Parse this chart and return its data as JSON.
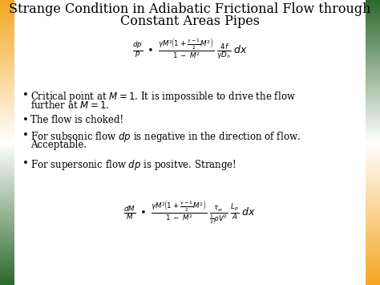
{
  "title_line1": "Strange Condition in Adiabatic Frictional Flow through",
  "title_line2": "Constant Areas Pipes",
  "title_fontsize": 11.5,
  "bg_color": "#ffffff",
  "text_color": "#000000",
  "bullet_fontsize": 8.5,
  "eq_fontsize": 9.0,
  "bullet1_line1": "Critical point at $M=1$. It is impossible to drive the flow",
  "bullet1_line2": "further at $M=1$.",
  "bullet2": "The flow is choked!",
  "bullet3_line1": "For subsonic flow $dp$ is negative in the direction of flow.",
  "bullet3_line2": "Acceptable.",
  "bullet4": "For supersonic flow $dp$ is positve. Strange!"
}
